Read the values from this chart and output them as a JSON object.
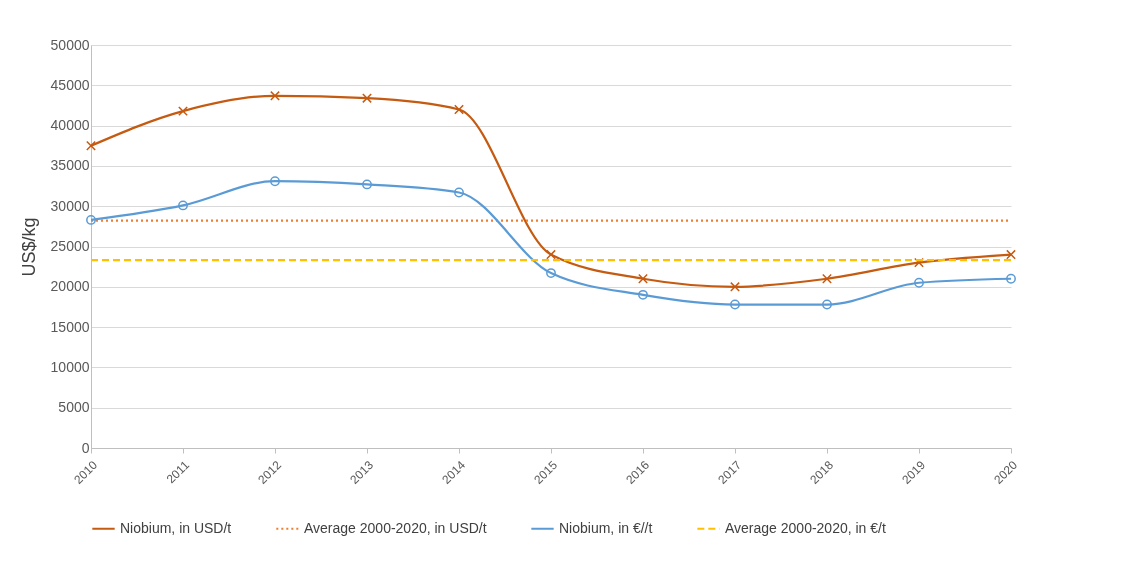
{
  "chart_data": {
    "type": "line",
    "ylabel": "US$/kg",
    "categories": [
      "2010",
      "2011",
      "2012",
      "2013",
      "2014",
      "2015",
      "2016",
      "2017",
      "2018",
      "2019",
      "2020"
    ],
    "series": [
      {
        "name": "Niobium, in USD/t",
        "color": "#c55a11",
        "marker": "cross",
        "line_style": "solid",
        "values": [
          37500,
          41800,
          43700,
          43400,
          42000,
          24000,
          21000,
          20000,
          21000,
          23000,
          24000
        ]
      },
      {
        "name": "Average 2000-2020, in USD/t",
        "color": "#ed7d31",
        "marker": "none",
        "line_style": "dotted",
        "values": [
          28200,
          28200,
          28200,
          28200,
          28200,
          28200,
          28200,
          28200,
          28200,
          28200,
          28200
        ]
      },
      {
        "name": "Niobium, in €//t",
        "color": "#5b9bd5",
        "marker": "circle",
        "line_style": "solid",
        "values": [
          28300,
          30100,
          33100,
          32700,
          31700,
          21700,
          19000,
          17800,
          17800,
          20500,
          21000
        ]
      },
      {
        "name": "Average 2000-2020, in €/t",
        "color": "#ffc000",
        "marker": "none",
        "line_style": "dashed",
        "values": [
          23300,
          23300,
          23300,
          23300,
          23300,
          23300,
          23300,
          23300,
          23300,
          23300,
          23300
        ]
      }
    ],
    "ylim": [
      0,
      50000
    ],
    "yticks": [
      0,
      5000,
      10000,
      15000,
      20000,
      25000,
      30000,
      35000,
      40000,
      45000,
      50000
    ],
    "grid": "y",
    "legend": "bottom"
  }
}
